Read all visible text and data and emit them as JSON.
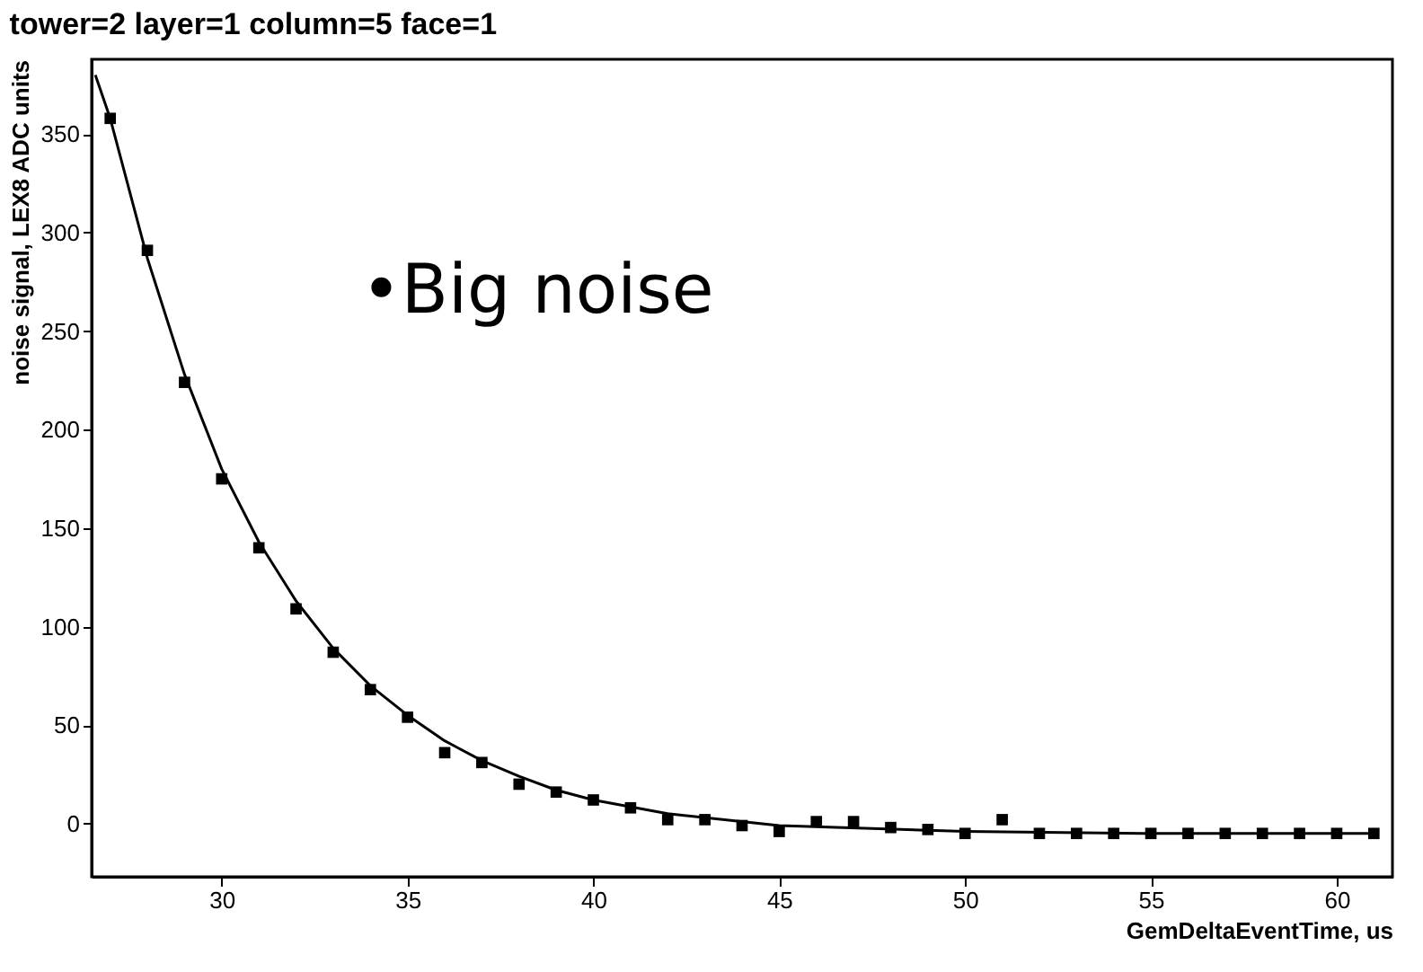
{
  "chart_data": {
    "type": "scatter",
    "title": "tower=2   layer=1  column=5  face=1",
    "xlabel": "GemDeltaEventTime, us",
    "ylabel": "noise signal, LEX8 ADC units",
    "annotations": [
      "•Big noise"
    ],
    "x": [
      27,
      28,
      29,
      30,
      31,
      32,
      33,
      34,
      35,
      36,
      37,
      38,
      39,
      40,
      41,
      42,
      43,
      44,
      45,
      46,
      47,
      48,
      49,
      50,
      51,
      52,
      53,
      54,
      55,
      56,
      57,
      58,
      59,
      60,
      61
    ],
    "series": [
      {
        "color": "#000000",
        "marker": "square",
        "values": [
          358,
          291,
          224,
          175,
          140,
          109,
          87,
          68,
          54,
          36,
          31,
          20,
          16,
          12,
          8,
          2,
          2,
          -1,
          -4,
          1,
          1,
          -2,
          -3,
          -5,
          2,
          -5,
          -5,
          -5,
          -5,
          -5,
          -5,
          -5,
          -5,
          -5,
          -5
        ]
      },
      {
        "type": "line",
        "color": "#000000",
        "marker": "none",
        "line_style": "solid",
        "x": [
          26.6,
          27,
          28,
          29,
          30,
          31,
          32,
          33,
          34,
          35,
          36,
          37,
          38,
          39,
          40,
          42,
          45,
          50,
          55,
          61
        ],
        "values": [
          380,
          358,
          287,
          228,
          180,
          143,
          113,
          89,
          70,
          55,
          42,
          32,
          24,
          17,
          12,
          5,
          -1,
          -4,
          -5,
          -5
        ]
      }
    ],
    "xlim": [
      26.5,
      61.5
    ],
    "ylim": [
      -27,
      388
    ],
    "xticks": [
      30,
      35,
      40,
      45,
      50,
      55,
      60
    ],
    "yticks": [
      0,
      50,
      100,
      150,
      200,
      250,
      300,
      350
    ],
    "grid": false
  }
}
